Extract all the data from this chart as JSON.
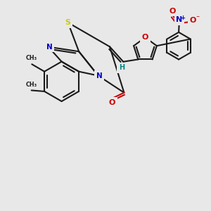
{
  "bg_color": "#e8e8e8",
  "bond_color": "#1a1a1a",
  "atom_colors": {
    "S": "#cccc00",
    "N": "#0000cc",
    "O": "#cc0000",
    "H": "#008888"
  },
  "lw": 1.5,
  "figsize": [
    3.0,
    3.0
  ],
  "dpi": 100
}
